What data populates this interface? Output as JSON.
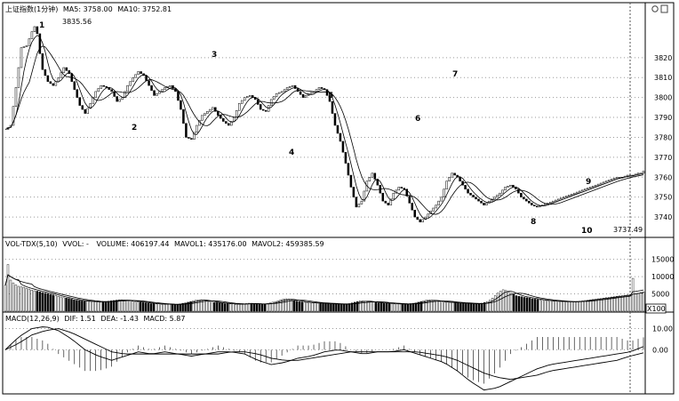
{
  "price_panel": {
    "header": {
      "title": "上证指数(1分钟)",
      "ma5": "MA5: 3758.00",
      "ma10": "MA10: 3752.81"
    },
    "y_ticks": [
      "3820",
      "3810",
      "3800",
      "3790",
      "3780",
      "3770",
      "3760",
      "3750",
      "3740"
    ],
    "high_label": "3835.56",
    "low_label": "3737.49",
    "wave_labels": [
      "1",
      "2",
      "3",
      "4",
      "5",
      "6",
      "7",
      "8",
      "9",
      "10"
    ]
  },
  "volume_panel": {
    "header": {
      "title": "VOL-TDX(5,10)",
      "vvol": "VVOL: -",
      "volume": "VOLUME: 406197.44",
      "mavol1": "MAVOL1: 435176.00",
      "mavol2": "MAVOL2: 459385.59"
    },
    "y_ticks": [
      "15000",
      "10000",
      "5000"
    ],
    "unit_label": "X100"
  },
  "macd_panel": {
    "header": {
      "title": "MACD(12,26,9)",
      "dif": "DIF: 1.51",
      "dea": "DEA: -1.43",
      "macd": "MACD: 5.87"
    },
    "y_ticks": [
      "10.00",
      "0.00"
    ]
  },
  "colors": {
    "up": "#ffffff",
    "down": "#000000",
    "grid": "#9a9a9a",
    "line": "#000000"
  },
  "chart_data": [
    {
      "type": "line",
      "name": "price",
      "ylim": [
        3732,
        3840
      ],
      "x": [
        0,
        2,
        4,
        6,
        8,
        10,
        11,
        12,
        13,
        14,
        16,
        18,
        20,
        22,
        24,
        26,
        28,
        30,
        32,
        34,
        36,
        38,
        40,
        42,
        44,
        46,
        48,
        50,
        52,
        54,
        56,
        58,
        60,
        62,
        64,
        66,
        68,
        70,
        72,
        74,
        76,
        78,
        80,
        82,
        84,
        86,
        88,
        90,
        92,
        94,
        96,
        98,
        100,
        102,
        104,
        106,
        108,
        110,
        112,
        114,
        116,
        118,
        120,
        122,
        124,
        126,
        128,
        130,
        132,
        134,
        136,
        138,
        140,
        142,
        144,
        146,
        148,
        150,
        152,
        154,
        156,
        158,
        160,
        162,
        164,
        166,
        168,
        170,
        172,
        174,
        176,
        178,
        180,
        182,
        184,
        186,
        188,
        190,
        192,
        194,
        196,
        198,
        200,
        202,
        204,
        206,
        208,
        210,
        212,
        214,
        216,
        218,
        220,
        222,
        224,
        226,
        228,
        230,
        232,
        234,
        236,
        238,
        239,
        240
      ],
      "values": [
        3784,
        3786,
        3805,
        3825,
        3826,
        3833,
        3835.56,
        3832,
        3822,
        3814,
        3808,
        3806,
        3810,
        3815,
        3812,
        3804,
        3796,
        3792,
        3797,
        3803,
        3806,
        3805,
        3803,
        3798,
        3800,
        3806,
        3810,
        3813,
        3811,
        3806,
        3801,
        3803,
        3805,
        3806,
        3803,
        3794,
        3780,
        3779,
        3786,
        3791,
        3793,
        3795,
        3791,
        3788,
        3786,
        3790,
        3797,
        3800,
        3801,
        3799,
        3794,
        3793,
        3799,
        3802,
        3803,
        3805,
        3806,
        3803,
        3800,
        3802,
        3803,
        3805,
        3804,
        3798,
        3786,
        3778,
        3767,
        3755,
        3745,
        3748,
        3758,
        3762,
        3756,
        3748,
        3746,
        3752,
        3755,
        3754,
        3747,
        3740,
        3737.49,
        3740,
        3743,
        3746,
        3750,
        3758,
        3762,
        3760,
        3756,
        3752,
        3750,
        3748,
        3746,
        3748,
        3750,
        3752,
        3755,
        3756,
        3754,
        3750,
        3748,
        3746,
        3745,
        3746,
        3747,
        3748,
        3749,
        3750,
        3751,
        3752,
        3753,
        3754,
        3755,
        3756,
        3757,
        3758,
        3759,
        3760,
        3760,
        3761,
        3761,
        3762,
        3762,
        3763
      ]
    },
    {
      "type": "bar",
      "name": "volume",
      "ylim": [
        0,
        18000
      ],
      "x_range": [
        0,
        240
      ],
      "values": [
        7500,
        13500,
        9000,
        8200,
        7600,
        7200,
        7000,
        6900,
        6600,
        6400,
        6100,
        5900,
        5800,
        5600,
        5400,
        5200,
        5100,
        4900,
        4700,
        4500,
        4300,
        4100,
        3900,
        3800,
        3700,
        3500,
        3300,
        3200,
        3100,
        3000,
        2900,
        2900,
        2800,
        2800,
        2700,
        2700,
        2600,
        2700,
        2800,
        2900,
        3000,
        3100,
        3200,
        3300,
        3300,
        3200,
        3100,
        3000,
        2900,
        2800,
        2700,
        2600,
        2500,
        2400,
        2300,
        2200,
        2200,
        2100,
        2100,
        2000,
        2000,
        2000,
        2000,
        1900,
        1900,
        2000,
        2100,
        2300,
        2400,
        2600,
        2800,
        3000,
        3200,
        3300,
        3300,
        3200,
        3000,
        2800,
        2600,
        2500,
        2500,
        2400,
        2300,
        2200,
        2200,
        2100,
        2100,
        2000,
        2000,
        2000,
        2100,
        2200,
        2300,
        2300,
        2200,
        2100,
        2000,
        2000,
        2100,
        2200,
        2400,
        2600,
        2800,
        3000,
        3300,
        3500,
        3600,
        3500,
        3300,
        3100,
        2900,
        2800,
        2700,
        2600,
        2500,
        2500,
        2400,
        2400,
        2300,
        2300,
        2200,
        2200,
        2200,
        2100,
        2100,
        2100,
        2000,
        2000,
        2000,
        2100,
        2200,
        2400,
        2600,
        2800,
        3000,
        3000,
        2900,
        2800,
        2700,
        2600,
        2500,
        2400,
        2400,
        2300,
        2300,
        2200,
        2200,
        2100,
        2100,
        2100,
        2000,
        2000,
        2100,
        2200,
        2300,
        2400,
        2600,
        2800,
        3000,
        3200,
        3300,
        3200,
        3000,
        2900,
        2800,
        2700,
        2600,
        2600,
        2500,
        2500,
        2400,
        2400,
        2300,
        2300,
        2200,
        2200,
        2200,
        2100,
        2100,
        2200,
        2300,
        2500,
        2800,
        3200,
        3800,
        4500,
        5200,
        5800,
        6200,
        6000,
        5600,
        5200,
        4800,
        4500,
        4300,
        4200,
        4000,
        3900,
        3800,
        3600,
        3500,
        3400,
        3300,
        3200,
        3100,
        3000,
        3000,
        2900,
        2900,
        2800,
        2800,
        2800,
        2700,
        2700,
        2700,
        2700,
        2800,
        2900,
        3000,
        3100,
        3200,
        3300,
        3400,
        3500,
        3600,
        3700,
        3800,
        3900,
        4000,
        4100,
        4200,
        4300,
        4400,
        4500,
        4600,
        4700,
        4800,
        9500,
        5000,
        5200,
        5400,
        5600
      ]
    },
    {
      "type": "line",
      "name": "macd",
      "ylim": [
        -20,
        14
      ],
      "x": [
        0,
        5,
        10,
        15,
        20,
        25,
        30,
        35,
        40,
        45,
        50,
        55,
        60,
        65,
        70,
        75,
        80,
        85,
        90,
        95,
        100,
        105,
        110,
        115,
        120,
        125,
        130,
        135,
        140,
        145,
        150,
        155,
        160,
        165,
        170,
        175,
        180,
        185,
        190,
        195,
        200,
        205,
        210,
        215,
        220,
        225,
        230,
        235,
        240
      ],
      "dif": [
        0,
        6,
        10,
        11,
        9,
        5,
        0,
        -3,
        -5,
        -3,
        -1,
        -2,
        -1,
        -2,
        -3,
        -2,
        -1,
        -1,
        -2,
        -5,
        -7,
        -6,
        -4,
        -3,
        -1,
        0,
        -1,
        -2,
        -1,
        -1,
        0,
        -2,
        -4,
        -6,
        -10,
        -15,
        -19,
        -18,
        -15,
        -12,
        -9,
        -7,
        -6,
        -5,
        -4,
        -3,
        -2,
        -1,
        1.51
      ],
      "dea": [
        0,
        3,
        7,
        9,
        10,
        8,
        5,
        2,
        -1,
        -2,
        -2,
        -2,
        -2,
        -2,
        -2,
        -2,
        -2,
        -1,
        -1,
        -2,
        -4,
        -5,
        -5,
        -4,
        -3,
        -2,
        -1,
        -1,
        -1,
        -1,
        -1,
        -1,
        -2,
        -3,
        -5,
        -8,
        -11,
        -13,
        -14,
        -13,
        -12,
        -10,
        -9,
        -8,
        -7,
        -6,
        -5,
        -3,
        -1.43
      ]
    }
  ]
}
